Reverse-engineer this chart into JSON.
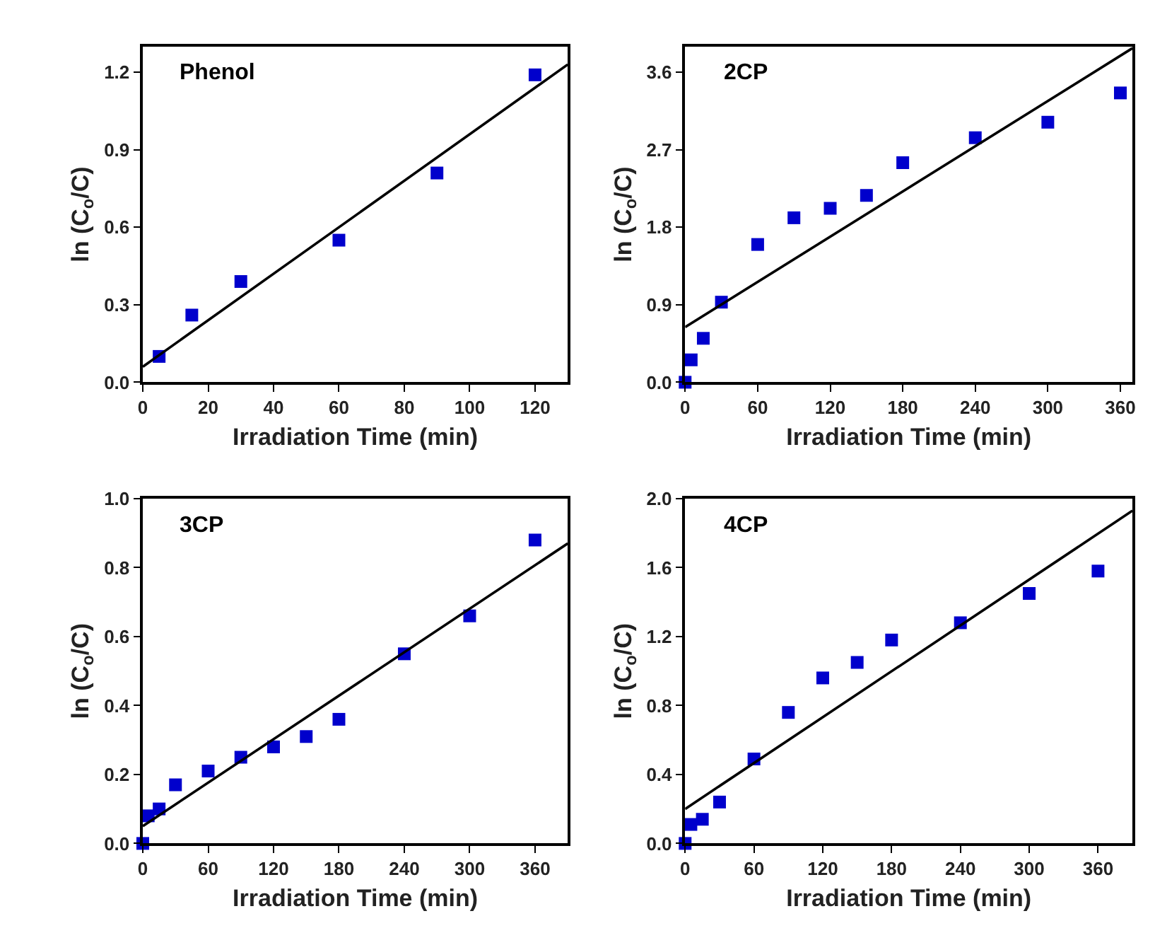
{
  "chart_data": [
    {
      "type": "scatter",
      "xlabel": "Irradiation Time (min)",
      "ylabel": "ln (C$_{o}$/C)",
      "annotations": [
        "Phenol"
      ],
      "xlim": [
        0,
        130
      ],
      "xticks": [
        0,
        20,
        40,
        60,
        80,
        100,
        120
      ],
      "ylim": [
        0,
        1.3
      ],
      "yticks": [
        {
          "value": 0,
          "label": "0.0"
        },
        0.3,
        0.6,
        0.9,
        1.2
      ],
      "series": [
        {
          "marker": "square",
          "color": "#0000cc",
          "x": [
            5,
            15,
            30,
            60,
            90,
            120
          ],
          "values": [
            0.1,
            0.26,
            0.39,
            0.55,
            0.81,
            1.19
          ]
        },
        {
          "type": "line",
          "marker": "none",
          "color": "#000000",
          "x": [
            0,
            130
          ],
          "values": [
            0.06,
            1.23
          ]
        }
      ]
    },
    {
      "type": "scatter",
      "xlabel": "Irradiation Time (min)",
      "ylabel": "ln (C$_{o}$/C)",
      "annotations": [
        "2CP"
      ],
      "xlim": [
        0,
        370
      ],
      "xticks": [
        0,
        60,
        120,
        180,
        240,
        300,
        360
      ],
      "ylim": [
        0,
        3.9
      ],
      "yticks": [
        {
          "value": 0,
          "label": "0.0"
        },
        0.9,
        1.8,
        2.7,
        3.6
      ],
      "series": [
        {
          "marker": "square",
          "color": "#0000cc",
          "x": [
            0,
            5,
            15,
            30,
            60,
            90,
            120,
            150,
            180,
            240,
            300,
            360
          ],
          "values": [
            0,
            0.26,
            0.51,
            0.93,
            1.6,
            1.91,
            2.02,
            2.17,
            2.55,
            2.84,
            3.02,
            3.36
          ]
        },
        {
          "type": "line",
          "marker": "none",
          "color": "#000000",
          "x": [
            0,
            370
          ],
          "values": [
            0.64,
            3.88
          ]
        }
      ]
    },
    {
      "type": "scatter",
      "xlabel": "Irradiation Time (min)",
      "ylabel": "ln (C$_{o}$/C)",
      "annotations": [
        "3CP"
      ],
      "xlim": [
        0,
        390
      ],
      "xticks": [
        0,
        60,
        120,
        180,
        240,
        300,
        360
      ],
      "ylim": [
        0,
        1.0
      ],
      "yticks": [
        {
          "value": 0,
          "label": "0.0"
        },
        0.2,
        0.4,
        0.6,
        0.8,
        {
          "value": 1,
          "label": "1.0"
        }
      ],
      "series": [
        {
          "marker": "square",
          "color": "#0000cc",
          "x": [
            0,
            5,
            15,
            30,
            60,
            90,
            120,
            150,
            180,
            240,
            300,
            360
          ],
          "values": [
            0,
            0.08,
            0.1,
            0.17,
            0.21,
            0.25,
            0.28,
            0.31,
            0.36,
            0.55,
            0.66,
            0.88
          ]
        },
        {
          "type": "line",
          "marker": "none",
          "color": "#000000",
          "x": [
            0,
            390
          ],
          "values": [
            0.05,
            0.87
          ]
        }
      ]
    },
    {
      "type": "scatter",
      "xlabel": "Irradiation Time (min)",
      "ylabel": "ln (C$_{o}$/C)",
      "annotations": [
        "4CP"
      ],
      "xlim": [
        0,
        390
      ],
      "xticks": [
        0,
        60,
        120,
        180,
        240,
        300,
        360
      ],
      "ylim": [
        0,
        2.0
      ],
      "yticks": [
        {
          "value": 0,
          "label": "0.0"
        },
        0.4,
        0.8,
        1.2,
        1.6,
        {
          "value": 2,
          "label": "2.0"
        }
      ],
      "series": [
        {
          "marker": "square",
          "color": "#0000cc",
          "x": [
            0,
            5,
            15,
            30,
            60,
            90,
            120,
            150,
            180,
            240,
            300,
            360
          ],
          "values": [
            0,
            0.11,
            0.14,
            0.24,
            0.49,
            0.76,
            0.96,
            1.05,
            1.18,
            1.28,
            1.45,
            1.58
          ]
        },
        {
          "type": "line",
          "marker": "none",
          "color": "#000000",
          "x": [
            0,
            390
          ],
          "values": [
            0.2,
            1.93
          ]
        }
      ]
    }
  ]
}
